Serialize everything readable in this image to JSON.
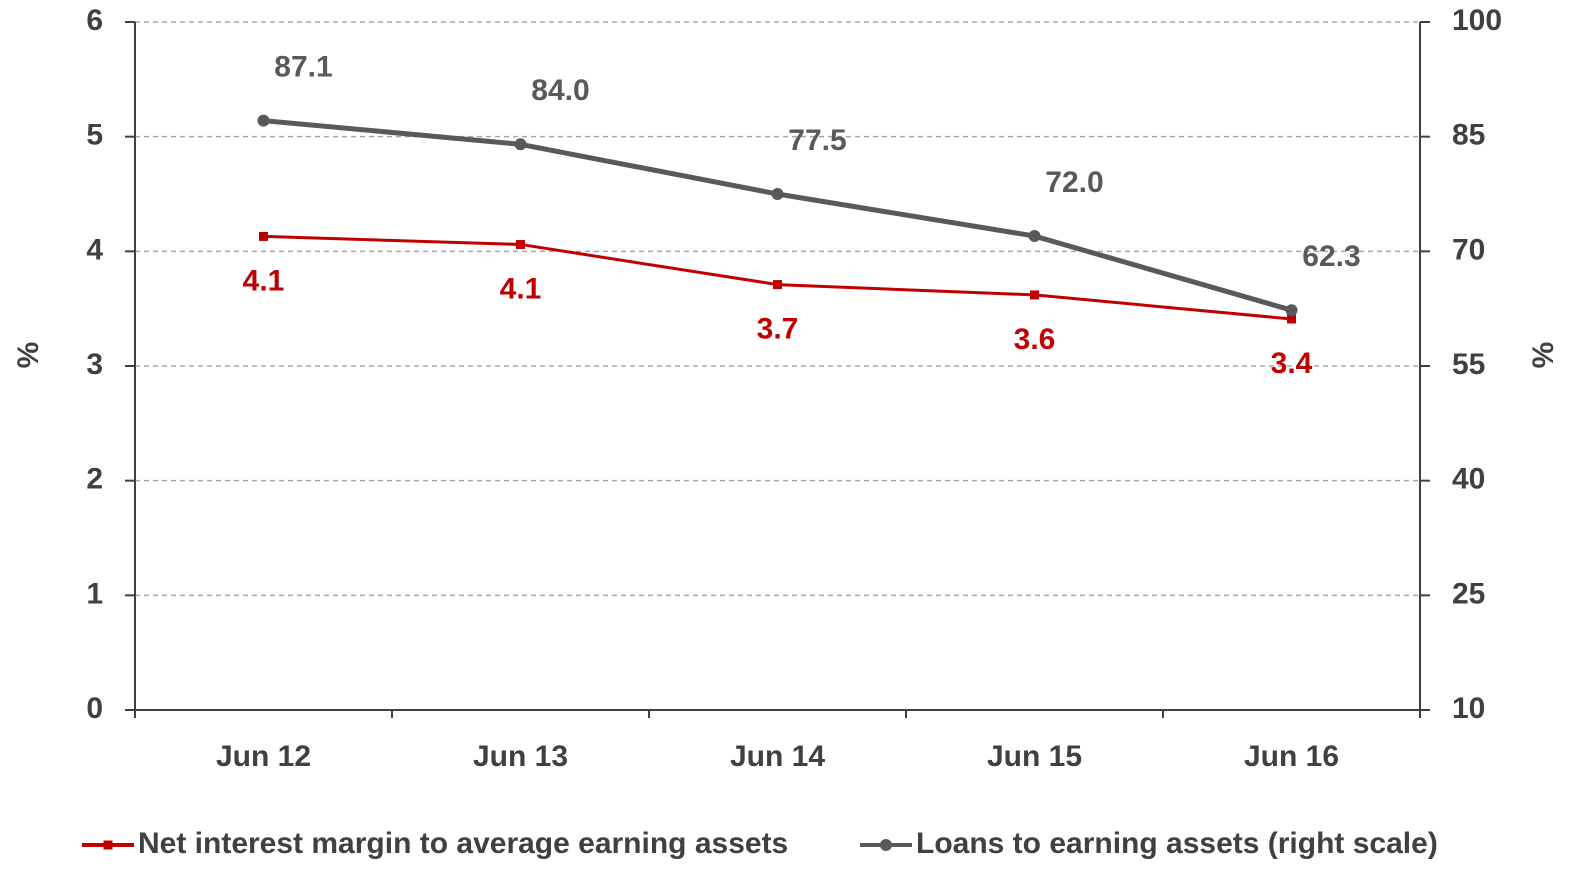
{
  "chart_data": {
    "type": "line",
    "categories": [
      "Jun 12",
      "Jun 13",
      "Jun 14",
      "Jun 15",
      "Jun 16"
    ],
    "series": [
      {
        "name": "Net interest margin to average earning assets",
        "color": "#c00000",
        "marker": "square",
        "values": [
          4.13,
          4.06,
          3.71,
          3.62,
          3.41
        ],
        "value_labels": [
          "4.1",
          "4.1",
          "3.7",
          "3.6",
          "3.4"
        ]
      },
      {
        "name": "Loans to earning assets (right scale)",
        "color": "#595959",
        "marker": "circle",
        "axis": "y2",
        "values": [
          87.1,
          84.0,
          77.5,
          72.0,
          62.3
        ],
        "value_labels": [
          "87.1",
          "84.0",
          "77.5",
          "72.0",
          "62.3"
        ]
      }
    ],
    "ylabel": "%",
    "y2label": "%",
    "ylim": [
      0,
      6
    ],
    "yticks": [
      0,
      1,
      2,
      3,
      4,
      5,
      6
    ],
    "y2lim": [
      10,
      100
    ],
    "y2ticks": [
      10,
      25,
      40,
      55,
      70,
      85,
      100
    ],
    "grid": true,
    "legend": "bottom"
  }
}
